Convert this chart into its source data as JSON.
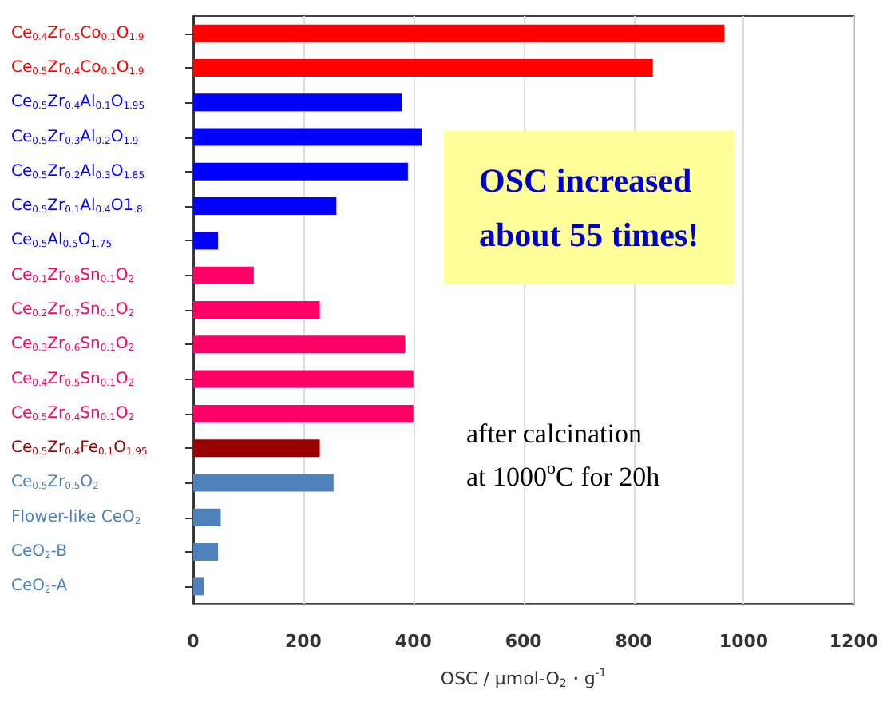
{
  "chart_data": {
    "type": "bar",
    "orientation": "horizontal",
    "xlabel": "OSC / μmol-O$_{2}$・g$^{-1}$",
    "categories": [
      "Ce$_{0.4}$Zr$_{0.5}$Co$_{0.1}$O$_{1.9}$",
      "Ce$_{0.5}$Zr$_{0.4}$Co$_{0.1}$O$_{1.9}$",
      "Ce$_{0.5}$Zr$_{0.4}$Al$_{0.1}$O$_{1.95}$",
      "Ce$_{0.5}$Zr$_{0.3}$Al$_{0.2}$O$_{1.9}$",
      "Ce$_{0.5}$Zr$_{0.2}$Al$_{0.3}$O$_{1.85}$",
      "Ce$_{0.5}$Zr$_{0.1}$Al$_{0.4}$O1$_{.8}$",
      "Ce$_{0.5}$Al$_{0.5}$O$_{1.75}$",
      "Ce$_{0.1}$Zr$_{0.8}$Sn$_{0.1}$O$_{2}$",
      "Ce$_{0.2}$Zr$_{0.7}$Sn$_{0.1}$O$_{2}$",
      "Ce$_{0.3}$Zr$_{0.6}$Sn$_{0.1}$O$_{2}$",
      "Ce$_{0.4}$Zr$_{0.5}$Sn$_{0.1}$O$_{2}$",
      "Ce$_{0.5}$Zr$_{0.4}$Sn$_{0.1}$O$_{2}$",
      "Ce$_{0.5}$Zr$_{0.4}$Fe$_{0.1}$O$_{1.95}$",
      "Ce$_{0.5}$Zr$_{0.5}$O$_{2}$",
      "Flower-like CeO$_{2}$",
      "CeO$_{2}$-B",
      "CeO$_{2}$-A"
    ],
    "values": [
      965,
      835,
      380,
      415,
      390,
      260,
      45,
      110,
      230,
      385,
      400,
      400,
      230,
      255,
      50,
      45,
      20
    ],
    "colors": [
      "#ff0000",
      "#ff0000",
      "#0000ff",
      "#0000ff",
      "#0000ff",
      "#0000ff",
      "#0000ff",
      "#ff0066",
      "#ff0066",
      "#ff0066",
      "#ff0066",
      "#ff0066",
      "#990000",
      "#4f81bd",
      "#4f81bd",
      "#4f81bd",
      "#4f81bd"
    ],
    "xlim": [
      0,
      1200
    ],
    "xticks": [
      0,
      200,
      400,
      600,
      800,
      1000,
      1200
    ],
    "grid": "x",
    "annotations": [
      "OSC increased\nabout 55 times!",
      "after calcination\nat 1000$^{o}$C for 20h"
    ]
  }
}
